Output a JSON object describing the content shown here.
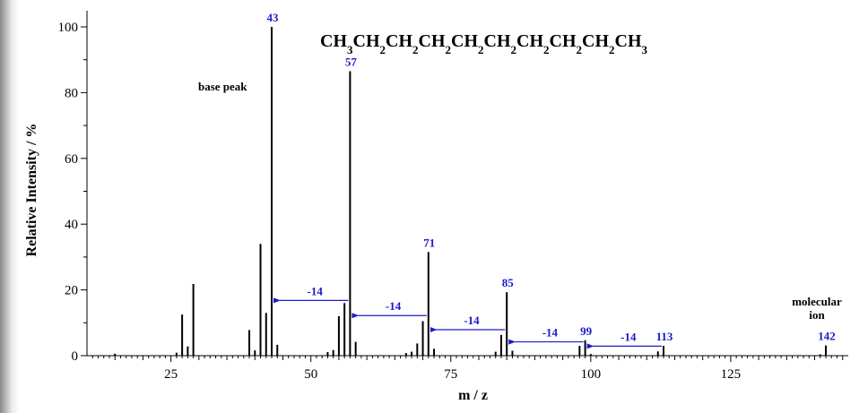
{
  "chart_data": {
    "type": "bar",
    "title": "CH3CH2CH2CH2CH2CH2CH2CH2CH2CH3",
    "xlabel": "m / z",
    "ylabel": "Relative Intensity / %",
    "xlim": [
      10,
      146
    ],
    "ylim": [
      0,
      100
    ],
    "x_ticks": [
      25,
      50,
      75,
      100,
      125
    ],
    "y_ticks": [
      0,
      20,
      40,
      60,
      80,
      100
    ],
    "grid": false,
    "peaks": [
      {
        "mz": 15,
        "intensity": 0.6
      },
      {
        "mz": 26,
        "intensity": 0.9
      },
      {
        "mz": 27,
        "intensity": 12.5
      },
      {
        "mz": 28,
        "intensity": 2.8
      },
      {
        "mz": 29,
        "intensity": 21.8
      },
      {
        "mz": 39,
        "intensity": 7.8
      },
      {
        "mz": 40,
        "intensity": 1.6
      },
      {
        "mz": 41,
        "intensity": 34
      },
      {
        "mz": 42,
        "intensity": 13
      },
      {
        "mz": 43,
        "intensity": 100
      },
      {
        "mz": 44,
        "intensity": 3.3
      },
      {
        "mz": 53,
        "intensity": 1.1
      },
      {
        "mz": 54,
        "intensity": 1.7
      },
      {
        "mz": 55,
        "intensity": 12
      },
      {
        "mz": 56,
        "intensity": 16
      },
      {
        "mz": 57,
        "intensity": 86.5
      },
      {
        "mz": 58,
        "intensity": 4.2
      },
      {
        "mz": 67,
        "intensity": 0.8
      },
      {
        "mz": 68,
        "intensity": 1.2
      },
      {
        "mz": 69,
        "intensity": 3.7
      },
      {
        "mz": 70,
        "intensity": 10.5
      },
      {
        "mz": 71,
        "intensity": 31.5
      },
      {
        "mz": 72,
        "intensity": 2.1
      },
      {
        "mz": 83,
        "intensity": 1.2
      },
      {
        "mz": 84,
        "intensity": 6.3
      },
      {
        "mz": 85,
        "intensity": 19.3
      },
      {
        "mz": 86,
        "intensity": 1.5
      },
      {
        "mz": 98,
        "intensity": 3
      },
      {
        "mz": 99,
        "intensity": 4.7
      },
      {
        "mz": 100,
        "intensity": 0.5
      },
      {
        "mz": 112,
        "intensity": 1.3
      },
      {
        "mz": 113,
        "intensity": 3
      },
      {
        "mz": 141,
        "intensity": 0.4
      },
      {
        "mz": 142,
        "intensity": 3.1
      }
    ],
    "peak_labels": [
      {
        "mz": 43,
        "intensity": 100,
        "label": "43"
      },
      {
        "mz": 57,
        "intensity": 86.5,
        "label": "57"
      },
      {
        "mz": 71,
        "intensity": 31.5,
        "label": "71"
      },
      {
        "mz": 85,
        "intensity": 19.3,
        "label": "85"
      },
      {
        "mz": 99,
        "intensity": 4.7,
        "label": "99"
      },
      {
        "mz": 113,
        "intensity": 3,
        "label": "113"
      },
      {
        "mz": 142,
        "intensity": 3.1,
        "label": "142"
      }
    ],
    "arrows": [
      {
        "from_mz": 57,
        "to_mz": 43,
        "intensity": 16.8,
        "label": "-14"
      },
      {
        "from_mz": 71,
        "to_mz": 57,
        "intensity": 12.2,
        "label": "-14"
      },
      {
        "from_mz": 85,
        "to_mz": 71,
        "intensity": 7.9,
        "label": "-14"
      },
      {
        "from_mz": 99,
        "to_mz": 85,
        "intensity": 4.2,
        "label": "-14"
      },
      {
        "from_mz": 113,
        "to_mz": 99,
        "intensity": 2.9,
        "label": "-14"
      }
    ],
    "annotations": {
      "base_peak": "base peak",
      "molecular_ion_line1": "molecular",
      "molecular_ion_line2": "ion"
    },
    "colors": {
      "peak": "#000000",
      "label": "#1a1acc",
      "arrow": "#1a1acc"
    }
  }
}
